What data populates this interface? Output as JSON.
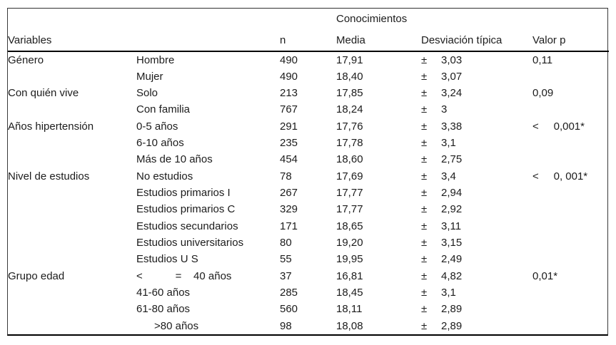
{
  "table": {
    "group_title": "Conocimientos",
    "columns": {
      "variables": "Variables",
      "n": "n",
      "media": "Media",
      "sd": "Desviación típica",
      "p": "Valor p"
    },
    "plus_minus": "±",
    "rows": [
      {
        "group": "Género",
        "category": "Hombre",
        "n": "490",
        "media": "17,91",
        "sd": "3,03",
        "p": "0,11"
      },
      {
        "group": "",
        "category": "Mujer",
        "n": "490",
        "media": "18,40",
        "sd": "3,07",
        "p": ""
      },
      {
        "group": "Con quién vive",
        "category": "Solo",
        "n": "213",
        "media": "17,85",
        "sd": "3,24",
        "p": "0,09"
      },
      {
        "group": "",
        "category": "Con familia",
        "n": "767",
        "media": "18,24",
        "sd": "3",
        "p": ""
      },
      {
        "group": "Años hipertensión",
        "category": "0-5 años",
        "n": "291",
        "media": "17,76",
        "sd": "3,38",
        "p": "<     0,001*"
      },
      {
        "group": "",
        "category": "6-10 años",
        "n": "235",
        "media": "17,78",
        "sd": "3,1",
        "p": ""
      },
      {
        "group": "",
        "category": "Más de 10 años",
        "n": "454",
        "media": "18,60",
        "sd": "2,75",
        "p": ""
      },
      {
        "group": "Nivel de estudios",
        "category": "No estudios",
        "n": "78",
        "media": "17,69",
        "sd": "3,4",
        "p": "<     0, 001*"
      },
      {
        "group": "",
        "category": "Estudios primarios I",
        "n": "267",
        "media": "17,77",
        "sd": "2,94",
        "p": ""
      },
      {
        "group": "",
        "category": "Estudios primarios C",
        "n": "329",
        "media": "17,77",
        "sd": "2,92",
        "p": ""
      },
      {
        "group": "",
        "category": "Estudios secundarios",
        "n": "171",
        "media": "18,65",
        "sd": "3,11",
        "p": ""
      },
      {
        "group": "",
        "category": "Estudios universitarios",
        "n": "80",
        "media": "19,20",
        "sd": "3,15",
        "p": ""
      },
      {
        "group": "",
        "category": "Estudios U S",
        "n": "55",
        "media": "19,95",
        "sd": "2,49",
        "p": ""
      },
      {
        "group": "Grupo edad",
        "category": "<           =    40 años",
        "n": "37",
        "media": "16,81",
        "sd": "4,82",
        "p": "0,01*"
      },
      {
        "group": "",
        "category": "41-60 años",
        "n": "285",
        "media": "18,45",
        "sd": "3,1",
        "p": ""
      },
      {
        "group": "",
        "category": "61-80 años",
        "n": "560",
        "media": "18,11",
        "sd": "2,89",
        "p": ""
      },
      {
        "group": "",
        "category": "      >80 años",
        "n": "98",
        "media": "18,08",
        "sd": "2,89",
        "p": ""
      }
    ],
    "colors": {
      "border_thin": "#3a3a3a",
      "border_thick": "#000000",
      "text": "#1c1c1c",
      "background": "#ffffff"
    }
  }
}
